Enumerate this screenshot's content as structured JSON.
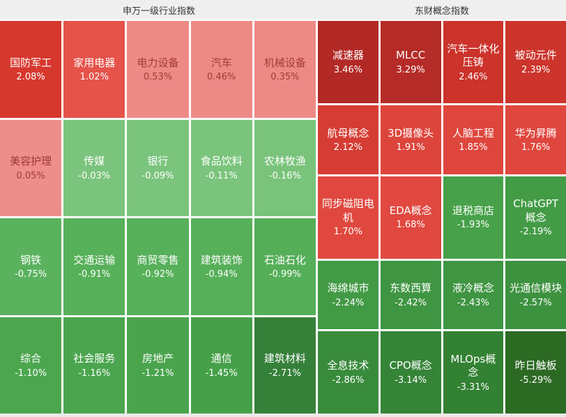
{
  "theme": {
    "header_bg": "#f0efef",
    "gap_color": "#ffffff",
    "title_color": "#333333",
    "gain_dark_red": "#b22926",
    "loss_dark_green": "#2c6a24"
  },
  "panels": [
    {
      "title": "申万一级行业指数",
      "columns": 5,
      "rows": 4,
      "cells": [
        {
          "label": "国防军工",
          "value": "2.08%",
          "bg": "#d7382e",
          "fg": "#ffffff"
        },
        {
          "label": "家用电器",
          "value": "1.02%",
          "bg": "#e5534a",
          "fg": "#ffffff"
        },
        {
          "label": "电力设备",
          "value": "0.53%",
          "bg": "#ee8a86",
          "fg": "#a23b31"
        },
        {
          "label": "汽车",
          "value": "0.46%",
          "bg": "#ee8a86",
          "fg": "#a23b31"
        },
        {
          "label": "机械设备",
          "value": "0.35%",
          "bg": "#ee8a86",
          "fg": "#a23b31"
        },
        {
          "label": "美容护理",
          "value": "0.05%",
          "bg": "#ee8e8c",
          "fg": "#a23b31"
        },
        {
          "label": "传媒",
          "value": "-0.03%",
          "bg": "#7bc47d",
          "fg": "#ffffff"
        },
        {
          "label": "银行",
          "value": "-0.09%",
          "bg": "#7bc47d",
          "fg": "#ffffff"
        },
        {
          "label": "食品饮料",
          "value": "-0.11%",
          "bg": "#7bc47d",
          "fg": "#ffffff"
        },
        {
          "label": "农林牧渔",
          "value": "-0.16%",
          "bg": "#79c37b",
          "fg": "#ffffff"
        },
        {
          "label": "钢铁",
          "value": "-0.75%",
          "bg": "#5bb25e",
          "fg": "#ffffff"
        },
        {
          "label": "交通运输",
          "value": "-0.91%",
          "bg": "#57b05a",
          "fg": "#ffffff"
        },
        {
          "label": "商贸零售",
          "value": "-0.92%",
          "bg": "#57b05a",
          "fg": "#ffffff"
        },
        {
          "label": "建筑装饰",
          "value": "-0.94%",
          "bg": "#56af59",
          "fg": "#ffffff"
        },
        {
          "label": "石油石化",
          "value": "-0.99%",
          "bg": "#55ae58",
          "fg": "#ffffff"
        },
        {
          "label": "综合",
          "value": "-1.10%",
          "bg": "#4ca64f",
          "fg": "#ffffff"
        },
        {
          "label": "社会服务",
          "value": "-1.16%",
          "bg": "#4ba54e",
          "fg": "#ffffff"
        },
        {
          "label": "房地产",
          "value": "-1.21%",
          "bg": "#4aa44d",
          "fg": "#ffffff"
        },
        {
          "label": "通信",
          "value": "-1.45%",
          "bg": "#46a049",
          "fg": "#ffffff"
        },
        {
          "label": "建筑材料",
          "value": "-2.71%",
          "bg": "#36813a",
          "fg": "#ffffff"
        }
      ]
    },
    {
      "title": "东财概念指数",
      "columns": 4,
      "rows": 5,
      "cells": [
        {
          "label": "减速器",
          "value": "3.46%",
          "bg": "#b22926",
          "fg": "#ffffff"
        },
        {
          "label": "MLCC",
          "value": "3.29%",
          "bg": "#b52b27",
          "fg": "#ffffff"
        },
        {
          "label": "汽车一体化压铸",
          "value": "2.46%",
          "bg": "#cb332b",
          "fg": "#ffffff"
        },
        {
          "label": "被动元件",
          "value": "2.39%",
          "bg": "#cc342c",
          "fg": "#ffffff"
        },
        {
          "label": "航母概念",
          "value": "2.12%",
          "bg": "#d53d34",
          "fg": "#ffffff"
        },
        {
          "label": "3D摄像头",
          "value": "1.91%",
          "bg": "#dd453c",
          "fg": "#ffffff"
        },
        {
          "label": "人脑工程",
          "value": "1.85%",
          "bg": "#de463d",
          "fg": "#ffffff"
        },
        {
          "label": "华为昇腾",
          "value": "1.76%",
          "bg": "#df473e",
          "fg": "#ffffff"
        },
        {
          "label": "同步磁阻电机",
          "value": "1.70%",
          "bg": "#e0483f",
          "fg": "#ffffff"
        },
        {
          "label": "EDA概念",
          "value": "1.68%",
          "bg": "#e04840",
          "fg": "#ffffff"
        },
        {
          "label": "退税商店",
          "value": "-1.93%",
          "bg": "#47a14a",
          "fg": "#ffffff"
        },
        {
          "label": "ChatGPT概念",
          "value": "-2.19%",
          "bg": "#439b46",
          "fg": "#ffffff"
        },
        {
          "label": "海绵城市",
          "value": "-2.24%",
          "bg": "#429a45",
          "fg": "#ffffff"
        },
        {
          "label": "东数西算",
          "value": "-2.42%",
          "bg": "#3f9542",
          "fg": "#ffffff"
        },
        {
          "label": "液冷概念",
          "value": "-2.43%",
          "bg": "#3f9542",
          "fg": "#ffffff"
        },
        {
          "label": "光通信模块",
          "value": "-2.57%",
          "bg": "#3d9240",
          "fg": "#ffffff"
        },
        {
          "label": "全息技术",
          "value": "-2.86%",
          "bg": "#398b3c",
          "fg": "#ffffff"
        },
        {
          "label": "CPO概念",
          "value": "-3.14%",
          "bg": "#358437",
          "fg": "#ffffff"
        },
        {
          "label": "MLOps概念",
          "value": "-3.31%",
          "bg": "#338133",
          "fg": "#ffffff"
        },
        {
          "label": "昨日触板",
          "value": "-5.29%",
          "bg": "#2c6a24",
          "fg": "#ffffff"
        }
      ]
    }
  ],
  "chart_data": [
    {
      "type": "heatmap",
      "title": "申万一级行业指数",
      "unit": "%",
      "layout": "5 columns x 4 rows, row-major, sorted descending; red = gain, green = loss",
      "categories": [
        "国防军工",
        "家用电器",
        "电力设备",
        "汽车",
        "机械设备",
        "美容护理",
        "传媒",
        "银行",
        "食品饮料",
        "农林牧渔",
        "钢铁",
        "交通运输",
        "商贸零售",
        "建筑装饰",
        "石油石化",
        "综合",
        "社会服务",
        "房地产",
        "通信",
        "建筑材料"
      ],
      "values": [
        2.08,
        1.02,
        0.53,
        0.46,
        0.35,
        0.05,
        -0.03,
        -0.09,
        -0.11,
        -0.16,
        -0.75,
        -0.91,
        -0.92,
        -0.94,
        -0.99,
        -1.1,
        -1.16,
        -1.21,
        -1.45,
        -2.71
      ]
    },
    {
      "type": "heatmap",
      "title": "东财概念指数",
      "unit": "%",
      "layout": "4 columns x 5 rows, row-major, sorted descending; red = gain, green = loss",
      "categories": [
        "减速器",
        "MLCC",
        "汽车一体化压铸",
        "被动元件",
        "航母概念",
        "3D摄像头",
        "人脑工程",
        "华为昇腾",
        "同步磁阻电机",
        "EDA概念",
        "退税商店",
        "ChatGPT概念",
        "海绵城市",
        "东数西算",
        "液冷概念",
        "光通信模块",
        "全息技术",
        "CPO概念",
        "MLOps概念",
        "昨日触板"
      ],
      "values": [
        3.46,
        3.29,
        2.46,
        2.39,
        2.12,
        1.91,
        1.85,
        1.76,
        1.7,
        1.68,
        -1.93,
        -2.19,
        -2.24,
        -2.42,
        -2.43,
        -2.57,
        -2.86,
        -3.14,
        -3.31,
        -5.29
      ]
    }
  ]
}
